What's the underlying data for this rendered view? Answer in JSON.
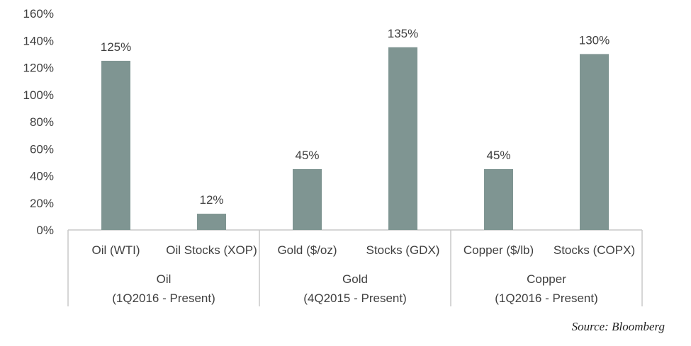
{
  "source": "Source: Bloomberg",
  "colors": {
    "bar": "#7f9592",
    "axis": "#c8c8c8",
    "text": "#404040"
  },
  "chart_data": {
    "type": "bar",
    "ylim": [
      0,
      160
    ],
    "yticks": [
      0,
      20,
      40,
      60,
      80,
      100,
      120,
      140,
      160
    ],
    "ytick_labels": [
      "0%",
      "20%",
      "40%",
      "60%",
      "80%",
      "100%",
      "120%",
      "140%",
      "160%"
    ],
    "grid": false,
    "categories": [
      "Oil (WTI)",
      "Oil Stocks (XOP)",
      "Gold ($/oz)",
      "Stocks (GDX)",
      "Copper ($/lb)",
      "Stocks (COPX)"
    ],
    "values": [
      125,
      12,
      45,
      135,
      45,
      130
    ],
    "data_labels": [
      "125%",
      "12%",
      "45%",
      "135%",
      "45%",
      "130%"
    ],
    "groups": [
      {
        "name": "Oil",
        "period": "(1Q2016 - Present)",
        "members": [
          0,
          1
        ]
      },
      {
        "name": "Gold",
        "period": "(4Q2015 - Present)",
        "members": [
          2,
          3
        ]
      },
      {
        "name": "Copper",
        "period": "(1Q2016 - Present)",
        "members": [
          4,
          5
        ]
      }
    ]
  }
}
